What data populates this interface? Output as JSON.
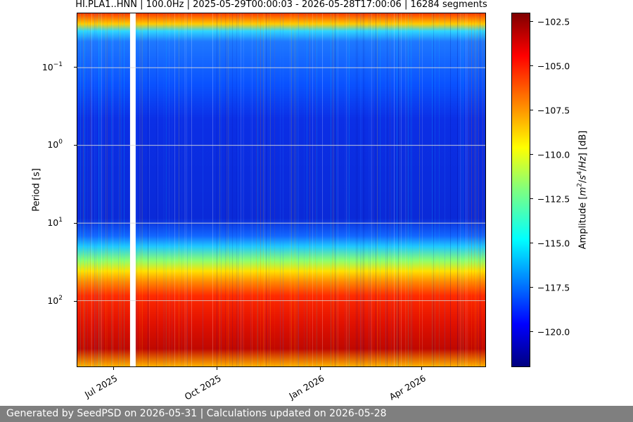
{
  "title": "HI.PLA1..HNN | 100.0Hz | 2025-05-29T00:00:03 - 2026-05-28T17:00:06 | 16284 segments",
  "footer": "Generated by SeedPSD on 2026-05-31 | Calculations updated on 2026-05-28",
  "chart_data": {
    "type": "heatmap",
    "title": "HI.PLA1..HNN | 100.0Hz | 2025-05-29T00:00:03 - 2026-05-28T17:00:06 | 16284 segments",
    "xlabel": "",
    "ylabel": "Period [s]",
    "y_scale": "log",
    "y_inverted": true,
    "ylim": [
      0.02,
      700
    ],
    "xlim": [
      "2025-05-29",
      "2026-05-28"
    ],
    "y_ticks": [
      {
        "base": "10",
        "exp": "−1",
        "value": 0.1
      },
      {
        "base": "10",
        "exp": "0",
        "value": 1
      },
      {
        "base": "10",
        "exp": "1",
        "value": 10
      },
      {
        "base": "10",
        "exp": "2",
        "value": 100
      }
    ],
    "x_ticks": [
      {
        "label": "Jul 2025",
        "date": "2025-07-01"
      },
      {
        "label": "Oct 2025",
        "date": "2025-10-01"
      },
      {
        "label": "Jan 2026",
        "date": "2026-01-01"
      },
      {
        "label": "Apr 2026",
        "date": "2026-04-01"
      }
    ],
    "grid": true,
    "colorbar": {
      "label": "Amplitude [m²/s⁴/Hz] [dB]",
      "colormap": "jet",
      "range": [
        -122,
        -102
      ],
      "ticks": [
        "−102.5",
        "−105.0",
        "−107.5",
        "−110.0",
        "−112.5",
        "−115.0",
        "−117.5",
        "−120.0"
      ],
      "tick_values": [
        -102.5,
        -105.0,
        -107.5,
        -110.0,
        -112.5,
        -115.0,
        -117.5,
        -120.0
      ]
    },
    "data_gaps": [
      [
        "2025-07-15",
        "2025-07-20"
      ]
    ],
    "period_band_levels_db": [
      {
        "period_range": [
          0.02,
          0.03
        ],
        "level_db": -110
      },
      {
        "period_range": [
          0.03,
          0.3
        ],
        "level_db": -117
      },
      {
        "period_range": [
          0.3,
          10
        ],
        "level_db": -120
      },
      {
        "period_range": [
          10,
          30
        ],
        "level_db": -117
      },
      {
        "period_range": [
          30,
          60
        ],
        "level_db": -112
      },
      {
        "period_range": [
          60,
          700
        ],
        "level_db": -105
      }
    ]
  }
}
